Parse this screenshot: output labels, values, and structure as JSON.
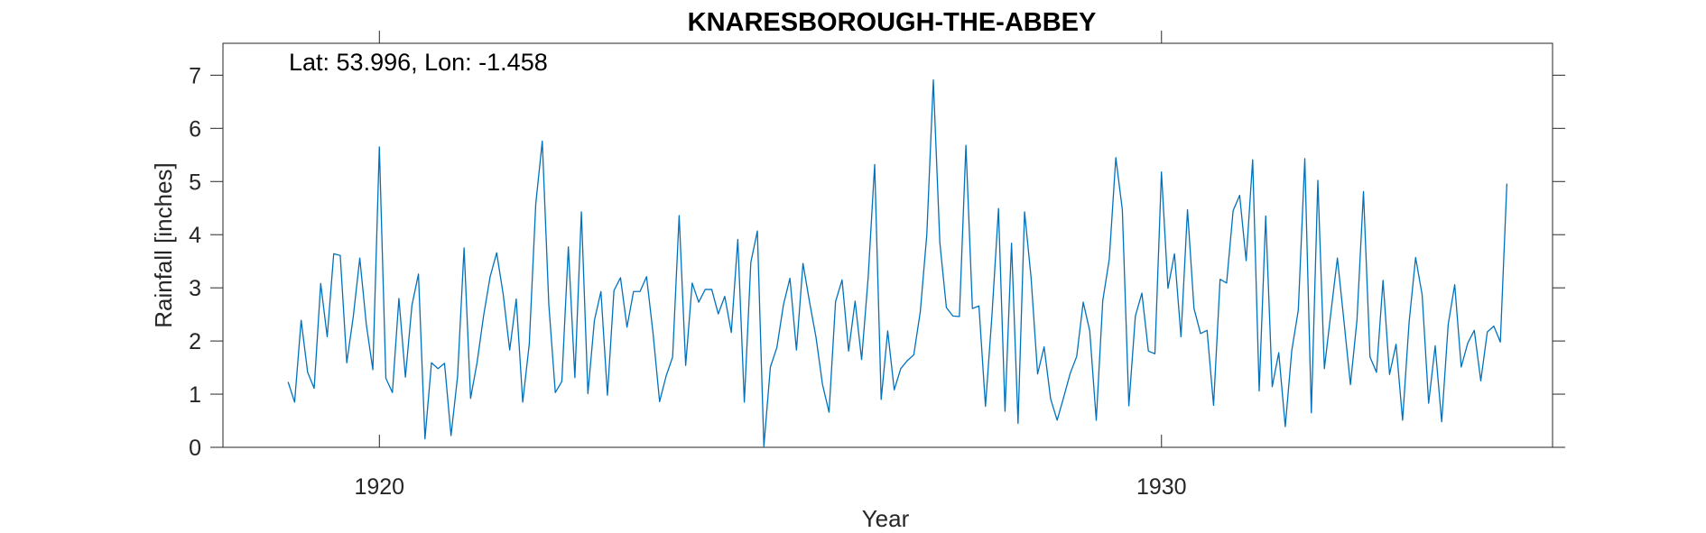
{
  "chart_data": {
    "type": "line",
    "title": "KNARESBOROUGH-THE-ABBEY",
    "xlabel": "Year",
    "ylabel": "Rainfall [inches]",
    "annotation": "Lat: 53.996, Lon: -1.458",
    "xlim": [
      1918.0,
      1935.0
    ],
    "ylim": [
      0,
      7.6
    ],
    "x_ticks": [
      1920,
      1930
    ],
    "x_tick_labels": [
      "1920",
      "1930"
    ],
    "y_ticks": [
      0,
      1,
      2,
      3,
      4,
      5,
      6,
      7
    ],
    "y_tick_labels": [
      "0",
      "1",
      "2",
      "3",
      "4",
      "5",
      "6",
      "7"
    ],
    "grid": false,
    "line_color": "#0072BD",
    "x_start": 1918.833,
    "x_step": 0.08333,
    "series": [
      {
        "name": "",
        "values": [
          1.23,
          0.85,
          2.39,
          1.41,
          1.11,
          3.08,
          2.08,
          3.64,
          3.61,
          1.59,
          2.46,
          3.56,
          2.31,
          1.46,
          5.65,
          1.3,
          1.03,
          2.8,
          1.32,
          2.67,
          3.26,
          0.16,
          1.59,
          1.48,
          1.58,
          0.22,
          1.33,
          3.75,
          0.92,
          1.6,
          2.48,
          3.21,
          3.66,
          2.88,
          1.83,
          2.79,
          0.85,
          1.94,
          4.58,
          5.76,
          2.69,
          1.03,
          1.24,
          3.77,
          1.31,
          4.43,
          1.01,
          2.39,
          2.93,
          0.98,
          2.95,
          3.19,
          2.26,
          2.93,
          2.93,
          3.21,
          2.14,
          0.86,
          1.34,
          1.7,
          4.36,
          1.54,
          3.09,
          2.73,
          2.97,
          2.97,
          2.51,
          2.84,
          2.16,
          3.91,
          0.85,
          3.48,
          4.07,
          0.02,
          1.51,
          1.88,
          2.68,
          3.18,
          1.83,
          3.46,
          2.74,
          2.07,
          1.18,
          0.66,
          2.74,
          3.15,
          1.81,
          2.75,
          1.65,
          3.19,
          5.32,
          0.9,
          2.19,
          1.08,
          1.48,
          1.63,
          1.74,
          2.55,
          4.0,
          6.91,
          3.85,
          2.63,
          2.47,
          2.46,
          5.68,
          2.61,
          2.66,
          0.77,
          2.49,
          4.49,
          0.68,
          3.84,
          0.45,
          4.43,
          3.19,
          1.38,
          1.89,
          0.91,
          0.51,
          0.94,
          1.39,
          1.71,
          2.73,
          2.19,
          0.51,
          2.76,
          3.54,
          5.45,
          4.47,
          0.78,
          2.47,
          2.9,
          1.81,
          1.76,
          5.18,
          2.99,
          3.64,
          2.08,
          4.47,
          2.61,
          2.14,
          2.2,
          0.79,
          3.16,
          3.09,
          4.45,
          4.74,
          3.51,
          5.41,
          1.06,
          4.35,
          1.14,
          1.78,
          0.39,
          1.82,
          2.58,
          5.43,
          0.65,
          5.02,
          1.48,
          2.53,
          3.56,
          2.38,
          1.18,
          2.39,
          4.81,
          1.7,
          1.41,
          3.14,
          1.37,
          1.94,
          0.51,
          2.35,
          3.57,
          2.87,
          0.83,
          1.91,
          0.48,
          2.31,
          3.06,
          1.51,
          1.96,
          2.2,
          1.25,
          2.17,
          2.28,
          1.98,
          4.96
        ]
      }
    ]
  }
}
